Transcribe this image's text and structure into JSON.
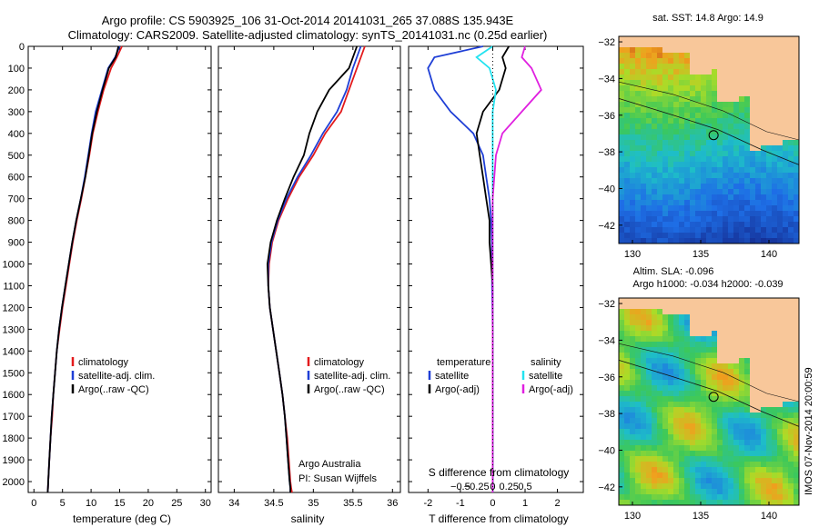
{
  "title": {
    "line1": "Argo profile: CS 5903925_106 31-Oct-2014 20141031_265 37.088S 135.943E",
    "line2": "Climatology: CARS2009. Satellite-adjusted climatology: synTS_20141031.nc (0.25d earlier)"
  },
  "colors": {
    "climatology": "#e31a1c",
    "satellite": "#1f3fd6",
    "argo": "#000000",
    "salinity_sat": "#22e3f0",
    "salinity_argo": "#e020e0",
    "land": "#f8c79a"
  },
  "chart_data": [
    {
      "type": "line",
      "name": "temperature-profile",
      "xlabel": "temperature (deg C)",
      "ylabel": "",
      "xlim": [
        -1,
        31
      ],
      "ylim": [
        2050,
        0
      ],
      "xticks": [
        0,
        5,
        10,
        15,
        20,
        25,
        30
      ],
      "yticks": [
        0,
        100,
        200,
        300,
        400,
        500,
        600,
        700,
        800,
        900,
        1000,
        1100,
        1200,
        1300,
        1400,
        1500,
        1600,
        1700,
        1800,
        1900,
        2000
      ],
      "legend": [
        "climatology",
        "satellite-adj. clim.",
        "Argo(..raw -QC)"
      ],
      "series": [
        {
          "name": "climatology",
          "color_key": "climatology",
          "x": [
            15.4,
            14.5,
            13.5,
            12.2,
            11.2,
            10.3,
            9.7,
            9.0,
            8.3,
            7.5,
            6.8,
            6.2,
            5.6,
            5.0,
            4.5,
            4.0,
            3.7,
            3.4,
            3.2,
            2.9,
            2.7,
            2.6,
            2.5,
            2.45,
            2.4,
            2.4
          ],
          "y": [
            0,
            50,
            100,
            200,
            300,
            400,
            500,
            600,
            700,
            800,
            900,
            1000,
            1100,
            1200,
            1300,
            1400,
            1500,
            1600,
            1700,
            1800,
            1900,
            1950,
            2000,
            2030,
            2050,
            2050
          ]
        },
        {
          "name": "satellite-adj. clim.",
          "color_key": "satellite",
          "x": [
            15.0,
            14.2,
            13.0,
            11.9,
            10.8,
            10.1,
            9.5,
            8.9,
            8.2,
            7.4,
            6.7,
            6.1,
            5.5,
            4.9,
            4.4,
            4.0,
            3.7,
            3.4,
            3.1,
            2.9,
            2.7,
            2.6,
            2.5,
            2.45,
            2.4,
            2.4
          ],
          "y": [
            0,
            50,
            100,
            200,
            300,
            400,
            500,
            600,
            700,
            800,
            900,
            1000,
            1100,
            1200,
            1300,
            1400,
            1500,
            1600,
            1700,
            1800,
            1900,
            1950,
            2000,
            2030,
            2050,
            2050
          ]
        },
        {
          "name": "Argo(..raw -QC)",
          "color_key": "argo",
          "x": [
            14.8,
            14.3,
            13.1,
            12.0,
            11.0,
            10.2,
            9.6,
            9.0,
            8.2,
            7.4,
            6.7,
            6.1,
            5.5,
            4.9,
            4.4,
            4.0,
            3.7,
            3.4,
            3.1,
            2.9,
            2.7,
            2.6,
            2.5,
            2.45,
            2.4,
            2.4
          ],
          "y": [
            0,
            50,
            100,
            200,
            300,
            400,
            500,
            600,
            700,
            800,
            900,
            1000,
            1100,
            1200,
            1300,
            1400,
            1500,
            1600,
            1700,
            1800,
            1900,
            1950,
            2000,
            2030,
            2050,
            2050
          ]
        }
      ]
    },
    {
      "type": "line",
      "name": "salinity-profile",
      "xlabel": "salinity",
      "xlim": [
        33.8,
        36.1
      ],
      "ylim": [
        2050,
        0
      ],
      "xticks": [
        34,
        34.5,
        35,
        35.5,
        36
      ],
      "legend": [
        "climatology",
        "satellite-adj. clim.",
        "Argo(..raw -QC)"
      ],
      "annotation": [
        "Argo Australia",
        "PI: Susan Wijffels"
      ],
      "series": [
        {
          "name": "climatology",
          "color_key": "climatology",
          "x": [
            35.65,
            35.55,
            35.45,
            35.35,
            35.15,
            35.0,
            34.82,
            34.68,
            34.56,
            34.48,
            34.44,
            34.43,
            34.45,
            34.49,
            34.53,
            34.57,
            34.61,
            34.64,
            34.67,
            34.69,
            34.71,
            34.72,
            34.73
          ],
          "y": [
            0,
            100,
            200,
            300,
            400,
            500,
            600,
            700,
            800,
            900,
            1000,
            1100,
            1200,
            1300,
            1400,
            1500,
            1600,
            1700,
            1800,
            1900,
            2000,
            2030,
            2050
          ]
        },
        {
          "name": "satellite-adj. clim.",
          "color_key": "satellite",
          "x": [
            35.6,
            35.5,
            35.42,
            35.3,
            35.12,
            34.97,
            34.8,
            34.66,
            34.55,
            34.47,
            34.43,
            34.43,
            34.45,
            34.49,
            34.53,
            34.57,
            34.61,
            34.64,
            34.66,
            34.68,
            34.7,
            34.71,
            34.71
          ],
          "y": [
            0,
            100,
            200,
            300,
            400,
            500,
            600,
            700,
            800,
            900,
            1000,
            1100,
            1200,
            1300,
            1400,
            1500,
            1600,
            1700,
            1800,
            1900,
            2000,
            2030,
            2050
          ]
        },
        {
          "name": "Argo(..raw -QC)",
          "color_key": "argo",
          "x": [
            35.55,
            35.45,
            35.2,
            35.05,
            34.95,
            34.88,
            34.75,
            34.64,
            34.54,
            34.46,
            34.42,
            34.43,
            34.45,
            34.49,
            34.53,
            34.57,
            34.61,
            34.64,
            34.66,
            34.68,
            34.7,
            34.71,
            34.71
          ],
          "y": [
            0,
            100,
            200,
            300,
            400,
            500,
            600,
            700,
            800,
            900,
            1000,
            1100,
            1200,
            1300,
            1400,
            1500,
            1600,
            1700,
            1800,
            1900,
            2000,
            2030,
            2050
          ]
        }
      ]
    },
    {
      "type": "line",
      "name": "difference-profile",
      "xlabel": "T difference from climatology",
      "xlabel_top": "S difference from climatology",
      "xlim": [
        -2.6,
        2.8
      ],
      "ylim": [
        2050,
        0
      ],
      "xticks_t": [
        -2,
        -1,
        0,
        1,
        2
      ],
      "xticks_s": [
        -0.5,
        -0.25,
        0,
        0.25,
        0.5
      ],
      "xticks_s_labels": [
        "−0.5",
        "−0.25",
        "0",
        "0.25",
        "0.5"
      ],
      "legend_temperature": {
        "title": "temperature",
        "items": [
          "satellite",
          "Argo(-adj)"
        ]
      },
      "legend_salinity": {
        "title": "salinity",
        "items": [
          "satellite",
          "Argo(-adj)"
        ]
      },
      "series": [
        {
          "name": "temperature satellite",
          "color_key": "satellite",
          "x": [
            -0.3,
            -1.8,
            -2.0,
            -1.8,
            -1.3,
            -0.6,
            -0.3,
            -0.2,
            -0.1,
            -0.05,
            -0.03,
            -0.02,
            -0.02,
            -0.01,
            0.0,
            0.0,
            0.0,
            0.0,
            0.0,
            0.0,
            0.0
          ],
          "y": [
            0,
            50,
            100,
            200,
            300,
            400,
            500,
            600,
            700,
            800,
            900,
            1000,
            1100,
            1200,
            1300,
            1400,
            1500,
            1600,
            1700,
            1900,
            2050
          ]
        },
        {
          "name": "temperature Argo(-adj)",
          "color_key": "argo",
          "x": [
            0.5,
            0.3,
            0.4,
            0.2,
            -0.3,
            -0.5,
            -0.4,
            -0.3,
            -0.2,
            -0.1,
            -0.1,
            -0.05,
            0.0,
            0.0,
            0.0,
            0.0,
            0.0,
            0.0,
            0.0,
            0.0,
            0.0
          ],
          "y": [
            0,
            50,
            100,
            200,
            300,
            400,
            500,
            600,
            700,
            800,
            900,
            1000,
            1100,
            1200,
            1300,
            1400,
            1500,
            1600,
            1700,
            1900,
            2050
          ]
        },
        {
          "name": "salinity satellite",
          "color_key": "salinity_sat",
          "x": [
            0.0,
            -0.5,
            -0.1,
            0.1,
            0.0,
            0.0,
            0.0,
            0.0,
            0.0,
            0.0,
            0.0,
            0.0,
            0.0,
            0.0,
            0.0,
            0.0,
            0.0,
            0.0,
            0.0
          ],
          "y": [
            0,
            50,
            100,
            200,
            300,
            400,
            500,
            600,
            700,
            800,
            900,
            1000,
            1100,
            1200,
            1300,
            1400,
            1500,
            1700,
            2050
          ]
        },
        {
          "name": "salinity Argo(-adj)",
          "color_key": "salinity_argo",
          "x": [
            1.0,
            0.9,
            1.2,
            1.5,
            0.9,
            0.3,
            0.1,
            0.05,
            0.0,
            0.0,
            0.0,
            0.0,
            0.0,
            0.0,
            0.0,
            0.0,
            0.0,
            0.0,
            0.0
          ],
          "y": [
            0,
            50,
            100,
            200,
            300,
            400,
            500,
            600,
            700,
            800,
            900,
            1000,
            1100,
            1200,
            1300,
            1400,
            1500,
            1700,
            2050
          ]
        }
      ]
    },
    {
      "type": "heatmap",
      "name": "sst-map",
      "title": "sat. SST: 14.8  Argo: 14.9",
      "xlim": [
        129,
        142.2
      ],
      "ylim": [
        -43,
        -31.7
      ],
      "xticks": [
        130,
        135,
        140
      ],
      "yticks": [
        -32,
        -34,
        -36,
        -38,
        -40,
        -42
      ],
      "profile_location": [
        135.943,
        -37.088
      ]
    },
    {
      "type": "heatmap",
      "name": "sla-map",
      "title": "Altim. SLA: -0.096",
      "subtitle": "Argo h1000: -0.034 h2000: -0.039",
      "xlim": [
        129,
        142.2
      ],
      "ylim": [
        -43,
        -31.7
      ],
      "xticks": [
        130,
        135,
        140
      ],
      "yticks": [
        -32,
        -34,
        -36,
        -38,
        -40,
        -42
      ],
      "profile_location": [
        135.943,
        -37.088
      ]
    }
  ],
  "side_label": "IMOS 07-Nov-2014 20:00:59"
}
